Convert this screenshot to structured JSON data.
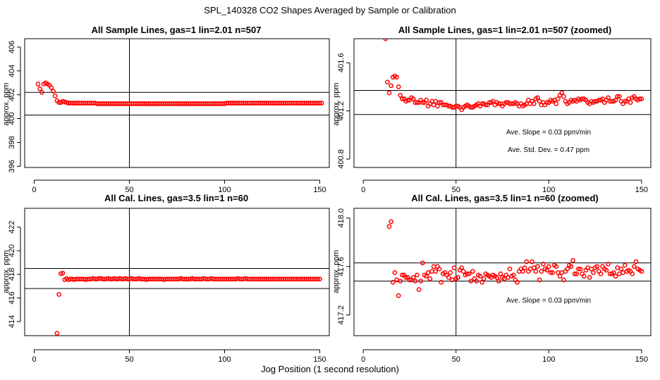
{
  "figure": {
    "title": "SPL_140328  CO2 Shapes Averaged by Sample or Calibration",
    "xlabel": "Jog Position (1 second resolution)"
  },
  "chart_data": [
    {
      "type": "scatter",
      "title": "All Sample Lines, gas=1 lin=2.01 n=507",
      "ylabel": "approx. ppm",
      "xlim": [
        -5,
        155
      ],
      "ylim": [
        395.9,
        406.7
      ],
      "xticks": [
        0,
        50,
        100,
        150
      ],
      "yticks": [
        396,
        398,
        400,
        402,
        404,
        406
      ],
      "vline": 50,
      "hlines": [
        402.2,
        400.3
      ],
      "annotations": [],
      "series": [
        {
          "color": "#ff0000",
          "x0": 2,
          "values": [
            402.9,
            402.5,
            402.2,
            402.9,
            403.0,
            402.9,
            402.8,
            402.6,
            402.3,
            401.9,
            401.5,
            401.35,
            401.35,
            401.45,
            401.4,
            401.35,
            401.3,
            401.3,
            401.3,
            401.3,
            401.3,
            401.3,
            401.3,
            401.3,
            401.3,
            401.3,
            401.3,
            401.3,
            401.3,
            401.3,
            401.3,
            401.25,
            401.25,
            401.25,
            401.25,
            401.25,
            401.25,
            401.25,
            401.25,
            401.25,
            401.25,
            401.25,
            401.25,
            401.25,
            401.25,
            401.25,
            401.25,
            401.25,
            401.25,
            401.25,
            401.25,
            401.25,
            401.25,
            401.25,
            401.25,
            401.25,
            401.25,
            401.25,
            401.25,
            401.25,
            401.25,
            401.25,
            401.25,
            401.25,
            401.25,
            401.25,
            401.25,
            401.25,
            401.25,
            401.25,
            401.25,
            401.25,
            401.25,
            401.25,
            401.25,
            401.25,
            401.25,
            401.25,
            401.25,
            401.25,
            401.25,
            401.25,
            401.25,
            401.25,
            401.25,
            401.25,
            401.25,
            401.25,
            401.25,
            401.25,
            401.25,
            401.25,
            401.25,
            401.25,
            401.25,
            401.25,
            401.25,
            401.25,
            401.25,
            401.3,
            401.3,
            401.3,
            401.3,
            401.3,
            401.3,
            401.3,
            401.3,
            401.3,
            401.3,
            401.3,
            401.3,
            401.3,
            401.3,
            401.3,
            401.3,
            401.3,
            401.3,
            401.3,
            401.3,
            401.3,
            401.3,
            401.3,
            401.3,
            401.3,
            401.3,
            401.3,
            401.3,
            401.3,
            401.3,
            401.3,
            401.3,
            401.3,
            401.3,
            401.3,
            401.3,
            401.3,
            401.3,
            401.3,
            401.3,
            401.3,
            401.3,
            401.3,
            401.3,
            401.3,
            401.3,
            401.3,
            401.3,
            401.3,
            401.3,
            401.3
          ]
        }
      ]
    },
    {
      "type": "scatter",
      "title": "All Sample Lines, gas=1 lin=2.01 n=507 (zoomed)",
      "ylabel": "approx. ppm",
      "xlim": [
        -5,
        155
      ],
      "ylim": [
        400.73,
        401.8
      ],
      "xticks": [
        0,
        50,
        100,
        150
      ],
      "yticks": [
        400.8,
        401.2,
        401.6
      ],
      "vline": 50,
      "hlines": [
        401.37,
        401.17
      ],
      "annotations": [
        "Ave. Slope =  0.03  ppm/min",
        "Ave. Std. Dev. =  0.47  ppm"
      ],
      "series": [
        {
          "color": "#ff0000",
          "x0": 12,
          "values": [
            401.8,
            401.44,
            401.35,
            401.41,
            401.48,
            401.49,
            401.48,
            401.4,
            401.33,
            401.3,
            401.3,
            401.28,
            401.29,
            401.29,
            401.31,
            401.3,
            401.27,
            401.27,
            401.27,
            401.29,
            401.27,
            401.27,
            401.29,
            401.24,
            401.26,
            401.28,
            401.25,
            401.28,
            401.24,
            401.27,
            401.27,
            401.25,
            401.25,
            401.25,
            401.24,
            401.24,
            401.23,
            401.23,
            401.24,
            401.24,
            401.23,
            401.21,
            401.23,
            401.24,
            401.25,
            401.24,
            401.23,
            401.23,
            401.24,
            401.25,
            401.26,
            401.24,
            401.26,
            401.26,
            401.25,
            401.25,
            401.27,
            401.27,
            401.28,
            401.25,
            401.27,
            401.26,
            401.26,
            401.24,
            401.26,
            401.27,
            401.27,
            401.26,
            401.26,
            401.26,
            401.27,
            401.26,
            401.24,
            401.26,
            401.24,
            401.25,
            401.26,
            401.29,
            401.26,
            401.28,
            401.26,
            401.3,
            401.31,
            401.28,
            401.25,
            401.27,
            401.25,
            401.27,
            401.27,
            401.29,
            401.28,
            401.29,
            401.26,
            401.3,
            401.33,
            401.35,
            401.32,
            401.28,
            401.26,
            401.27,
            401.29,
            401.28,
            401.29,
            401.28,
            401.3,
            401.29,
            401.3,
            401.3,
            401.29,
            401.27,
            401.26,
            401.28,
            401.27,
            401.28,
            401.28,
            401.29,
            401.29,
            401.3,
            401.27,
            401.29,
            401.31,
            401.28,
            401.28,
            401.28,
            401.29,
            401.32,
            401.32,
            401.28,
            401.26,
            401.28,
            401.28,
            401.3,
            401.27,
            401.31,
            401.32,
            401.3,
            401.29,
            401.3,
            401.3
          ]
        }
      ]
    },
    {
      "type": "scatter",
      "title": "All Cal. Lines, gas=3.5 lin=1 n=60",
      "ylabel": "approx. ppm",
      "xlim": [
        -5,
        155
      ],
      "ylim": [
        412.8,
        423.6
      ],
      "xticks": [
        0,
        50,
        100,
        150
      ],
      "yticks": [
        414,
        416,
        418,
        420,
        422
      ],
      "vline": 50,
      "hlines": [
        418.5,
        416.8
      ],
      "annotations": [],
      "series": [
        {
          "color": "#ff0000",
          "x0": 12,
          "values": [
            413.0,
            416.3,
            418.05,
            418.1,
            417.55,
            417.65,
            417.55,
            417.6,
            417.6,
            417.55,
            417.6,
            417.6,
            417.6,
            417.6,
            417.6,
            417.55,
            417.6,
            417.6,
            417.6,
            417.65,
            417.6,
            417.6,
            417.65,
            417.65,
            417.6,
            417.6,
            417.6,
            417.65,
            417.6,
            417.6,
            417.65,
            417.6,
            417.6,
            417.65,
            417.6,
            417.6,
            417.65,
            417.6,
            417.6,
            417.65,
            417.6,
            417.6,
            417.6,
            417.65,
            417.6,
            417.6,
            417.6,
            417.55,
            417.6,
            417.6,
            417.6,
            417.6,
            417.6,
            417.6,
            417.6,
            417.6,
            417.55,
            417.6,
            417.6,
            417.6,
            417.6,
            417.6,
            417.6,
            417.6,
            417.6,
            417.65,
            417.6,
            417.6,
            417.6,
            417.6,
            417.6,
            417.65,
            417.6,
            417.6,
            417.6,
            417.6,
            417.6,
            417.65,
            417.6,
            417.6,
            417.6,
            417.65,
            417.6,
            417.6,
            417.6,
            417.6,
            417.6,
            417.6,
            417.6,
            417.6,
            417.6,
            417.6,
            417.6,
            417.6,
            417.6,
            417.65,
            417.6,
            417.6,
            417.6,
            417.65,
            417.6,
            417.6,
            417.6,
            417.6,
            417.6,
            417.6,
            417.6,
            417.6,
            417.6,
            417.6,
            417.6,
            417.6,
            417.6,
            417.6,
            417.6,
            417.6,
            417.6,
            417.6,
            417.6,
            417.6,
            417.6,
            417.6,
            417.6,
            417.6,
            417.6,
            417.6,
            417.6,
            417.6,
            417.6,
            417.6,
            417.6,
            417.6,
            417.6,
            417.6,
            417.6,
            417.6,
            417.6,
            417.6,
            417.6
          ]
        }
      ]
    },
    {
      "type": "scatter",
      "title": "All Cal. Lines, gas=3.5 lin=1 n=60 (zoomed)",
      "ylabel": "approx. ppm",
      "xlim": [
        -5,
        155
      ],
      "ylim": [
        417.03,
        418.08
      ],
      "xticks": [
        0,
        50,
        100,
        150
      ],
      "yticks": [
        417.2,
        417.6,
        418.0
      ],
      "vline": 50,
      "hlines": [
        417.63,
        417.48
      ],
      "annotations": [
        "Ave. Slope =  0.03  ppm/min"
      ],
      "series": [
        {
          "color": "#ff0000",
          "x0": 14,
          "values": [
            417.93,
            417.97,
            417.47,
            417.55,
            417.49,
            417.36,
            417.48,
            417.53,
            417.53,
            417.51,
            417.51,
            417.49,
            417.49,
            417.51,
            417.48,
            417.53,
            417.41,
            417.48,
            417.63,
            417.53,
            417.52,
            417.55,
            417.5,
            417.56,
            417.6,
            417.56,
            417.6,
            417.58,
            417.47,
            417.54,
            417.55,
            417.53,
            417.51,
            417.55,
            417.49,
            417.59,
            417.5,
            417.51,
            417.57,
            417.59,
            417.56,
            417.53,
            417.54,
            417.54,
            417.48,
            417.56,
            417.5,
            417.48,
            417.53,
            417.52,
            417.47,
            417.5,
            417.54,
            417.53,
            417.52,
            417.51,
            417.53,
            417.52,
            417.51,
            417.48,
            417.54,
            417.51,
            417.5,
            417.53,
            417.51,
            417.58,
            417.52,
            417.53,
            417.49,
            417.47,
            417.56,
            417.58,
            417.56,
            417.59,
            417.64,
            417.56,
            417.58,
            417.64,
            417.59,
            417.56,
            417.6,
            417.49,
            417.56,
            417.62,
            417.58,
            417.57,
            417.6,
            417.55,
            417.55,
            417.61,
            417.6,
            417.55,
            417.52,
            417.55,
            417.49,
            417.56,
            417.58,
            417.61,
            417.6,
            417.65,
            417.54,
            417.54,
            417.58,
            417.58,
            417.54,
            417.52,
            417.57,
            417.59,
            417.51,
            417.58,
            417.55,
            417.59,
            417.6,
            417.56,
            417.54,
            417.6,
            417.58,
            417.57,
            417.62,
            417.54,
            417.54,
            417.55,
            417.52,
            417.59,
            417.54,
            417.58,
            417.55,
            417.61,
            417.56,
            417.57,
            417.56,
            417.54,
            417.6,
            417.64,
            417.58,
            417.57,
            417.56
          ]
        }
      ]
    }
  ]
}
